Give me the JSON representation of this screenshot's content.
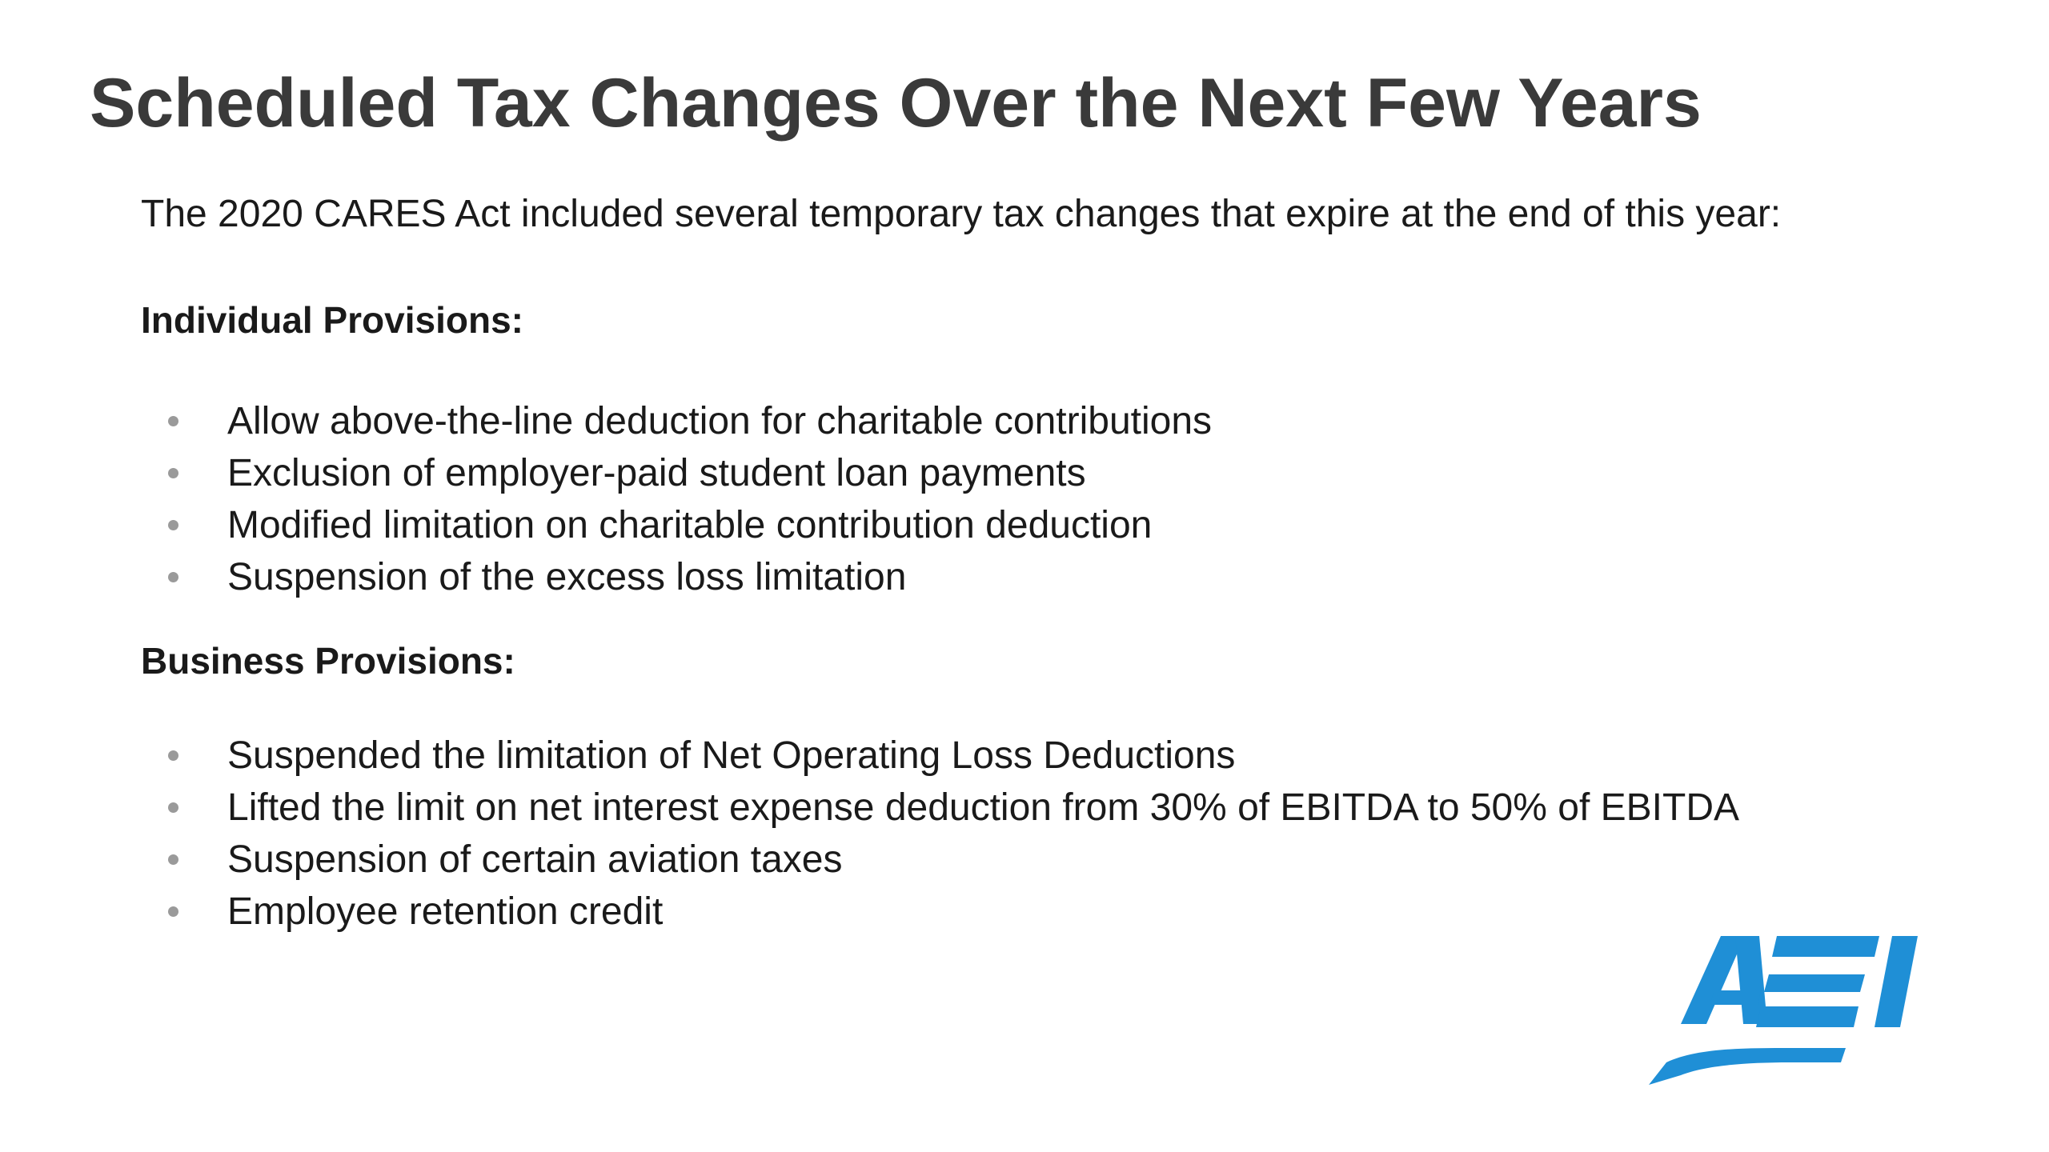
{
  "slide": {
    "title": "Scheduled Tax Changes Over the Next Few Years",
    "intro": "The 2020 CARES Act included several temporary tax changes that expire at the end of this year:",
    "sections": [
      {
        "heading": "Individual Provisions:",
        "items": [
          "Allow above-the-line deduction for charitable contributions",
          "Exclusion of employer-paid student loan payments",
          "Modified limitation on charitable contribution deduction",
          "Suspension of the excess loss limitation"
        ]
      },
      {
        "heading": "Business Provisions:",
        "items": [
          "Suspended the limitation of Net Operating Loss Deductions",
          "Lifted the limit on net interest expense deduction from 30% of EBITDA to 50% of EBITDA",
          "Suspension of certain aviation taxes",
          "Employee retention credit"
        ]
      }
    ]
  },
  "logo": {
    "text": "AEI",
    "icon": "aei-logo",
    "color": "#1f8fd6"
  },
  "colors": {
    "title": "#3a3a3a",
    "text": "#1a1a1a",
    "bullet": "#9a9a9a",
    "background": "#ffffff"
  }
}
